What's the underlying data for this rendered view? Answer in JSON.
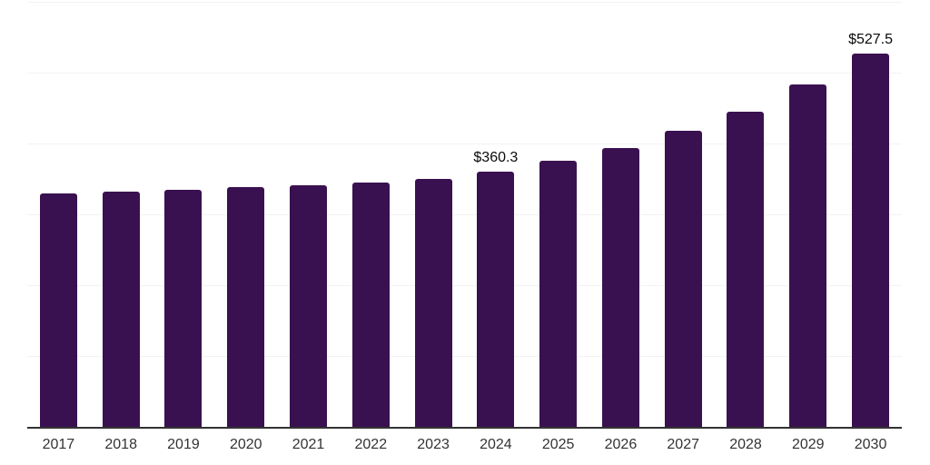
{
  "chart_data": {
    "type": "bar",
    "title": "",
    "xlabel": "",
    "ylabel": "",
    "categories": [
      "2017",
      "2018",
      "2019",
      "2020",
      "2021",
      "2022",
      "2023",
      "2024",
      "2025",
      "2026",
      "2027",
      "2028",
      "2029",
      "2030"
    ],
    "values": [
      330,
      332,
      335,
      338,
      341,
      345,
      350,
      360.3,
      376,
      394,
      418,
      445,
      483,
      527.5
    ],
    "bar_labels": [
      "",
      "",
      "",
      "",
      "",
      "",
      "",
      "$360.3",
      "",
      "",
      "",
      "",
      "",
      "$527.5"
    ],
    "ylim": [
      0,
      600
    ],
    "grid": true,
    "gridline_values": [
      100,
      200,
      300,
      400,
      500,
      600
    ],
    "legend": false,
    "colors": {
      "bar": "#3a1150",
      "gridline": "#f2f2f2",
      "axis_line": "#333333",
      "tick_label": "#333333",
      "value_label": "#0a0a0a",
      "background": "#ffffff"
    }
  }
}
